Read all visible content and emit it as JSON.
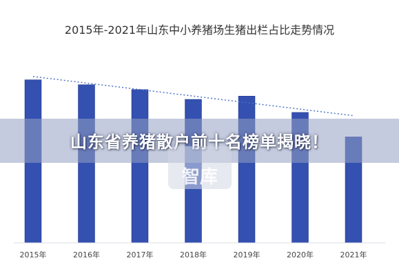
{
  "chart_data": {
    "type": "bar",
    "title": "2015年-2021年山东中小养猪场生猪出栏占比走势情况",
    "categories": [
      "2015年",
      "2016年",
      "2017年",
      "2018年",
      "2019年",
      "2020年",
      "2021年"
    ],
    "values": [
      100,
      97,
      94,
      88,
      90,
      80,
      65
    ],
    "trendline": {
      "start": 102,
      "end": 78,
      "style": "dotted"
    },
    "ylim": [
      0,
      110
    ],
    "grid": false,
    "colors": {
      "bar": "#3450b0",
      "bar_edge": "#1f3288",
      "trendline": "#4a74c8"
    }
  },
  "overlay": {
    "banner_text": "山东省养猪散户前十名榜单揭晓！",
    "watermark_text": "智库"
  }
}
